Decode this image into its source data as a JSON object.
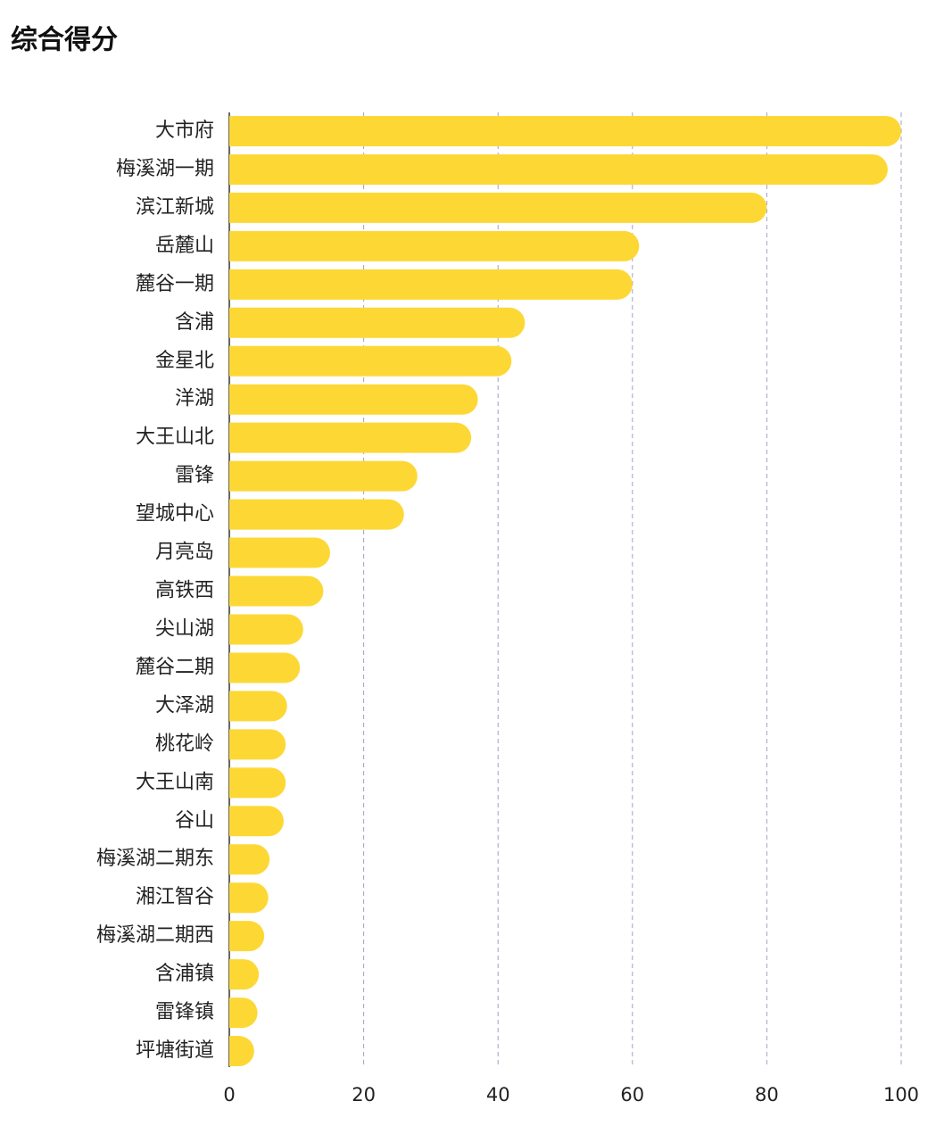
{
  "chart_data": {
    "type": "hbar",
    "title": "综合得分",
    "categories": [
      "大市府",
      "梅溪湖一期",
      "滨江新城",
      "岳麓山",
      "麓谷一期",
      "含浦",
      "金星北",
      "洋湖",
      "大王山北",
      "雷锋",
      "望城中心",
      "月亮岛",
      "高铁西",
      "尖山湖",
      "麓谷二期",
      "大泽湖",
      "桃花岭",
      "大王山南",
      "谷山",
      "梅溪湖二期东",
      "湘江智谷",
      "梅溪湖二期西",
      "含浦镇",
      "雷锋镇",
      "坪塘街道"
    ],
    "values": [
      100,
      98,
      80,
      61,
      60,
      44,
      42,
      37,
      36,
      28,
      26,
      15,
      14,
      11,
      10.5,
      8.6,
      8.4,
      8.4,
      8.1,
      6,
      5.8,
      5.2,
      4.4,
      4.2,
      3.7
    ],
    "color": "#fdd835",
    "xlim": [
      0,
      100
    ],
    "xticks": [
      0,
      20,
      40,
      60,
      80,
      100
    ],
    "grid": true
  }
}
